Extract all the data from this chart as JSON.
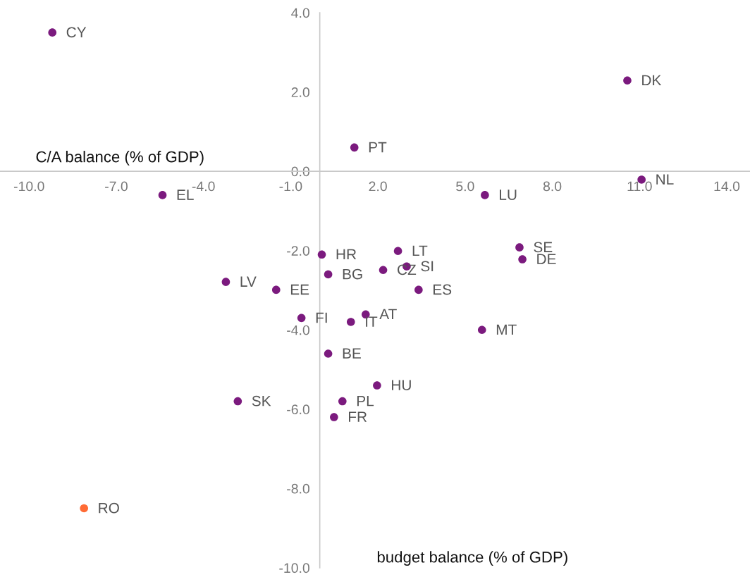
{
  "chart_data": {
    "type": "scatter",
    "xlabel": "budget balance (% of GDP)",
    "ylabel": "C/A balance (% of GDP)",
    "x": [
      -9.2,
      10.58,
      1.19,
      11.07,
      5.68,
      -5.41,
      0.07,
      2.69,
      6.87,
      6.97,
      0.29,
      2.18,
      2.99,
      -3.23,
      -1.5,
      3.4,
      -0.63,
      1.58,
      1.07,
      5.58,
      0.29,
      1.97,
      -2.82,
      0.78,
      0.49,
      -8.11
    ],
    "values": [
      3.5,
      2.29,
      0.6,
      -0.21,
      -0.6,
      -0.6,
      -2.1,
      -2.01,
      -1.92,
      -2.22,
      -2.6,
      -2.49,
      -2.4,
      -2.79,
      -2.99,
      -2.99,
      -3.7,
      -3.61,
      -3.8,
      -4.0,
      -4.6,
      -5.4,
      -5.8,
      -5.8,
      -6.2,
      -8.5
    ],
    "colors": [
      "#7b1a7e",
      "#7b1a7e",
      "#7b1a7e",
      "#7b1a7e",
      "#7b1a7e",
      "#7b1a7e",
      "#7b1a7e",
      "#7b1a7e",
      "#7b1a7e",
      "#7b1a7e",
      "#7b1a7e",
      "#7b1a7e",
      "#7b1a7e",
      "#7b1a7e",
      "#7b1a7e",
      "#7b1a7e",
      "#7b1a7e",
      "#7b1a7e",
      "#7b1a7e",
      "#7b1a7e",
      "#7b1a7e",
      "#7b1a7e",
      "#7b1a7e",
      "#7b1a7e",
      "#7b1a7e",
      "#ff6b35"
    ],
    "annotations": [
      {
        "text": "CY",
        "x": -9.2,
        "y": 3.5
      },
      {
        "text": "DK",
        "x": 10.58,
        "y": 2.29
      },
      {
        "text": "PT",
        "x": 1.19,
        "y": 0.6
      },
      {
        "text": "NL",
        "x": 11.07,
        "y": -0.21
      },
      {
        "text": "LU",
        "x": 5.68,
        "y": -0.6
      },
      {
        "text": "EL",
        "x": -5.41,
        "y": -0.6
      },
      {
        "text": "HR",
        "x": 0.07,
        "y": -2.1
      },
      {
        "text": "LT",
        "x": 2.69,
        "y": -2.01
      },
      {
        "text": "SE",
        "x": 6.87,
        "y": -1.92
      },
      {
        "text": "DE",
        "x": 6.97,
        "y": -2.22
      },
      {
        "text": "BG",
        "x": 0.29,
        "y": -2.6
      },
      {
        "text": "CZ",
        "x": 2.18,
        "y": -2.49
      },
      {
        "text": "SI",
        "x": 2.99,
        "y": -2.4
      },
      {
        "text": "LV",
        "x": -3.23,
        "y": -2.79
      },
      {
        "text": "EE",
        "x": -1.5,
        "y": -2.99
      },
      {
        "text": "ES",
        "x": 3.4,
        "y": -2.99
      },
      {
        "text": "FI",
        "x": -0.63,
        "y": -3.7
      },
      {
        "text": "AT",
        "x": 1.58,
        "y": -3.61
      },
      {
        "text": "IT",
        "x": 1.07,
        "y": -3.8
      },
      {
        "text": "MT",
        "x": 5.58,
        "y": -4.0
      },
      {
        "text": "BE",
        "x": 0.29,
        "y": -4.6
      },
      {
        "text": "HU",
        "x": 1.97,
        "y": -5.4
      },
      {
        "text": "SK",
        "x": -2.82,
        "y": -5.8
      },
      {
        "text": "PL",
        "x": 0.78,
        "y": -5.8
      },
      {
        "text": "FR",
        "x": 0.49,
        "y": -6.2
      },
      {
        "text": "RO",
        "x": -8.11,
        "y": -8.5
      }
    ],
    "xlim": [
      -11,
      14.8
    ],
    "xticks": [
      {
        "value": -10,
        "label": "-10.0"
      },
      {
        "value": -7,
        "label": "-7.0"
      },
      {
        "value": -4,
        "label": "-4.0"
      },
      {
        "value": -1,
        "label": "-1.0"
      },
      {
        "value": 2,
        "label": "2.0"
      },
      {
        "value": 5,
        "label": "5.0"
      },
      {
        "value": 8,
        "label": "8.0"
      },
      {
        "value": 11,
        "label": "11.0"
      },
      {
        "value": 14,
        "label": "14.0"
      }
    ],
    "ylim": [
      -10,
      4
    ],
    "yticks": [
      {
        "value": -10,
        "label": "-10.0"
      },
      {
        "value": -8,
        "label": "-8.0"
      },
      {
        "value": -6,
        "label": "-6.0"
      },
      {
        "value": -4,
        "label": "-4.0"
      },
      {
        "value": -2,
        "label": "-2.0"
      },
      {
        "value": 0,
        "label": "0.0"
      },
      {
        "value": 2,
        "label": "2.0"
      },
      {
        "value": 4,
        "label": "4.0"
      }
    ],
    "grid": false,
    "legend": false,
    "marker": "circle"
  }
}
